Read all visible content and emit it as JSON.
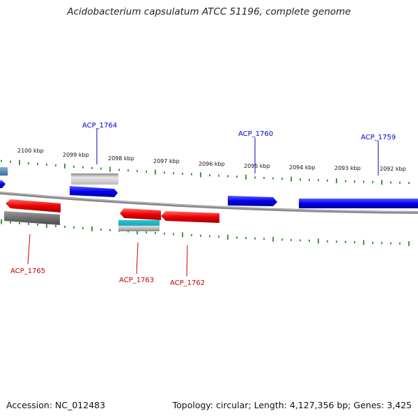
{
  "title": "Acidobacterium capsulatum ATCC 51196, complete genome",
  "footer": {
    "accession": "Accession: NC_012483",
    "summary": "Topology: circular; Length: 4,127,356 bp; Genes: 3,425"
  },
  "colors": {
    "forward": "#0000ee",
    "reverse": "#ee0000",
    "gray_gene": "#777777",
    "light_gray_gene": "#cccccc",
    "cyan_gene": "#22bbcc",
    "backbone": "#888888",
    "ticks": "#2a8a2a"
  },
  "kbp_labels": [
    "2100 kbp",
    "2099 kbp",
    "2098 kbp",
    "2097 kbp",
    "2096 kbp",
    "2095 kbp",
    "2094 kbp",
    "2093 kbp",
    "2092 kbp"
  ],
  "gene_labels": {
    "forward": [
      "ACP_1764",
      "ACP_1760",
      "ACP_1759"
    ],
    "reverse": [
      "ACP_1765",
      "ACP_1763",
      "ACP_1762"
    ]
  }
}
